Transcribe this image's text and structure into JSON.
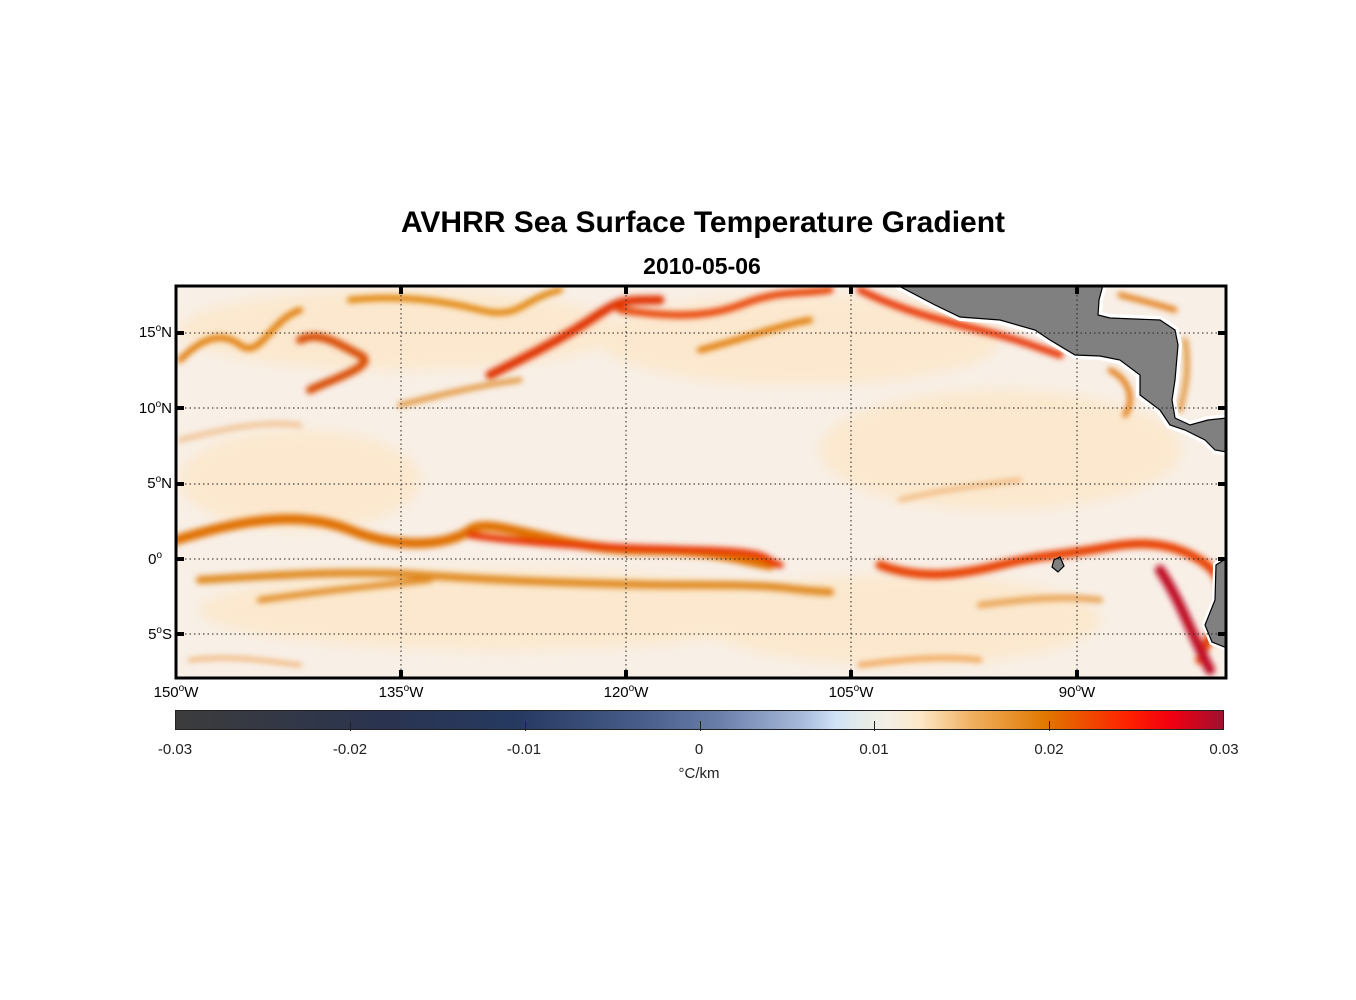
{
  "title": "AVHRR Sea Surface Temperature Gradient",
  "subtitle": "2010-05-06",
  "map": {
    "lon_range": [
      -150,
      -80
    ],
    "lat_range": [
      -8,
      18
    ],
    "y_ticks": [
      {
        "base": "15",
        "sup": "o",
        "suffix": "N"
      },
      {
        "base": "10",
        "sup": "o",
        "suffix": "N"
      },
      {
        "base": "5",
        "sup": "o",
        "suffix": "N"
      },
      {
        "base": "0",
        "sup": "o",
        "suffix": ""
      },
      {
        "base": "5",
        "sup": "o",
        "suffix": "S"
      }
    ],
    "x_ticks": [
      {
        "base": "150",
        "sup": "o",
        "suffix": "W"
      },
      {
        "base": "135",
        "sup": "o",
        "suffix": "W"
      },
      {
        "base": "120",
        "sup": "o",
        "suffix": "W"
      },
      {
        "base": "105",
        "sup": "o",
        "suffix": "W"
      },
      {
        "base": "90",
        "sup": "o",
        "suffix": "W"
      }
    ],
    "land_color": "#808080",
    "grid": "dotted"
  },
  "colorbar": {
    "ticks": [
      "-0.03",
      "-0.02",
      "-0.01",
      "0",
      "0.01",
      "0.02",
      "0.03"
    ],
    "label": "°C/km",
    "range": [
      -0.03,
      0.03
    ]
  }
}
